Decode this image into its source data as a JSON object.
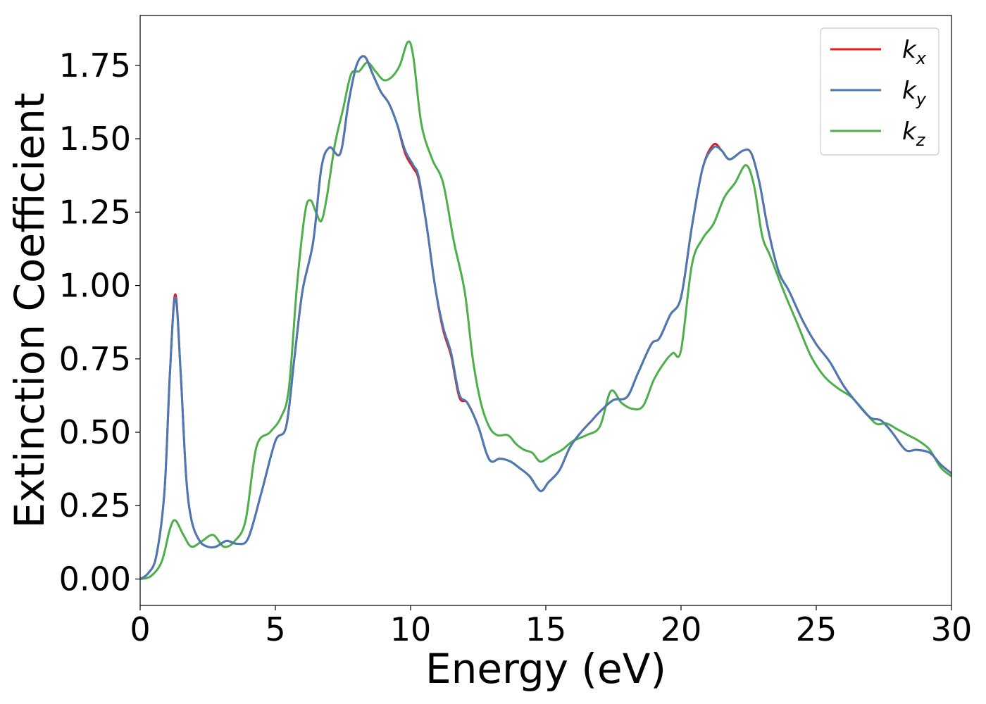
{
  "chart_data": {
    "type": "line",
    "title": "",
    "xlabel": "Energy (eV)",
    "ylabel": "Extinction Coefficient",
    "xlim": [
      0,
      30
    ],
    "ylim": [
      -0.09,
      1.92
    ],
    "x_ticks": [
      0,
      5,
      10,
      15,
      20,
      25,
      30
    ],
    "x_tick_labels": [
      "0",
      "5",
      "10",
      "15",
      "20",
      "25",
      "30"
    ],
    "y_ticks": [
      0,
      0.25,
      0.5,
      0.75,
      1.0,
      1.25,
      1.5,
      1.75
    ],
    "y_tick_labels": [
      "0.00",
      "0.25",
      "0.50",
      "0.75",
      "1.00",
      "1.25",
      "1.50",
      "1.75"
    ],
    "grid": false,
    "legend_position": "top-right",
    "series": [
      {
        "name": "k_x",
        "legend_base": "k",
        "legend_sub": "x",
        "color": "#e41a1c",
        "points": [
          [
            0,
            0.0
          ],
          [
            0.3,
            0.02
          ],
          [
            0.6,
            0.08
          ],
          [
            0.9,
            0.3
          ],
          [
            1.1,
            0.7
          ],
          [
            1.3,
            0.97
          ],
          [
            1.5,
            0.7
          ],
          [
            1.7,
            0.35
          ],
          [
            1.9,
            0.2
          ],
          [
            2.2,
            0.13
          ],
          [
            2.5,
            0.11
          ],
          [
            2.8,
            0.11
          ],
          [
            3.2,
            0.13
          ],
          [
            3.6,
            0.12
          ],
          [
            4.0,
            0.14
          ],
          [
            4.5,
            0.3
          ],
          [
            5.0,
            0.47
          ],
          [
            5.4,
            0.52
          ],
          [
            5.7,
            0.75
          ],
          [
            6.0,
            0.98
          ],
          [
            6.4,
            1.15
          ],
          [
            6.7,
            1.4
          ],
          [
            7.0,
            1.47
          ],
          [
            7.4,
            1.45
          ],
          [
            7.7,
            1.62
          ],
          [
            8.0,
            1.75
          ],
          [
            8.3,
            1.78
          ],
          [
            8.6,
            1.72
          ],
          [
            8.9,
            1.66
          ],
          [
            9.2,
            1.62
          ],
          [
            9.5,
            1.55
          ],
          [
            9.8,
            1.45
          ],
          [
            10.1,
            1.4
          ],
          [
            10.3,
            1.36
          ],
          [
            10.6,
            1.2
          ],
          [
            10.9,
            1.0
          ],
          [
            11.2,
            0.85
          ],
          [
            11.5,
            0.76
          ],
          [
            11.8,
            0.62
          ],
          [
            12.1,
            0.6
          ],
          [
            12.5,
            0.52
          ],
          [
            12.8,
            0.43
          ],
          [
            13.0,
            0.4
          ],
          [
            13.3,
            0.41
          ],
          [
            13.7,
            0.4
          ],
          [
            14.0,
            0.38
          ],
          [
            14.4,
            0.35
          ],
          [
            14.8,
            0.3
          ],
          [
            15.1,
            0.33
          ],
          [
            15.5,
            0.37
          ],
          [
            15.9,
            0.45
          ],
          [
            16.3,
            0.5
          ],
          [
            16.7,
            0.54
          ],
          [
            17.0,
            0.57
          ],
          [
            17.5,
            0.61
          ],
          [
            18.0,
            0.62
          ],
          [
            18.4,
            0.7
          ],
          [
            18.9,
            0.8
          ],
          [
            19.2,
            0.82
          ],
          [
            19.6,
            0.9
          ],
          [
            20.0,
            0.96
          ],
          [
            20.4,
            1.2
          ],
          [
            20.8,
            1.4
          ],
          [
            21.2,
            1.48
          ],
          [
            21.5,
            1.46
          ],
          [
            21.8,
            1.43
          ],
          [
            22.3,
            1.46
          ],
          [
            22.6,
            1.45
          ],
          [
            22.9,
            1.35
          ],
          [
            23.2,
            1.2
          ],
          [
            23.6,
            1.05
          ],
          [
            24.0,
            0.98
          ],
          [
            24.5,
            0.88
          ],
          [
            25.0,
            0.8
          ],
          [
            25.5,
            0.74
          ],
          [
            26.0,
            0.66
          ],
          [
            26.5,
            0.6
          ],
          [
            27.0,
            0.55
          ],
          [
            27.4,
            0.54
          ],
          [
            27.8,
            0.5
          ],
          [
            28.3,
            0.44
          ],
          [
            28.7,
            0.44
          ],
          [
            29.2,
            0.43
          ],
          [
            29.6,
            0.39
          ],
          [
            30.0,
            0.36
          ]
        ]
      },
      {
        "name": "k_y",
        "legend_base": "k",
        "legend_sub": "y",
        "color": "#4a7ab5",
        "points": [
          [
            0,
            0.0
          ],
          [
            0.3,
            0.02
          ],
          [
            0.6,
            0.08
          ],
          [
            0.9,
            0.3
          ],
          [
            1.1,
            0.7
          ],
          [
            1.3,
            0.96
          ],
          [
            1.5,
            0.7
          ],
          [
            1.7,
            0.35
          ],
          [
            1.9,
            0.2
          ],
          [
            2.2,
            0.13
          ],
          [
            2.5,
            0.11
          ],
          [
            2.8,
            0.11
          ],
          [
            3.2,
            0.13
          ],
          [
            3.6,
            0.12
          ],
          [
            4.0,
            0.14
          ],
          [
            4.5,
            0.3
          ],
          [
            5.0,
            0.47
          ],
          [
            5.4,
            0.52
          ],
          [
            5.7,
            0.75
          ],
          [
            6.0,
            0.98
          ],
          [
            6.4,
            1.15
          ],
          [
            6.7,
            1.4
          ],
          [
            7.0,
            1.47
          ],
          [
            7.4,
            1.45
          ],
          [
            7.7,
            1.62
          ],
          [
            8.0,
            1.75
          ],
          [
            8.3,
            1.78
          ],
          [
            8.6,
            1.72
          ],
          [
            8.9,
            1.66
          ],
          [
            9.2,
            1.62
          ],
          [
            9.5,
            1.55
          ],
          [
            9.8,
            1.46
          ],
          [
            10.1,
            1.41
          ],
          [
            10.3,
            1.37
          ],
          [
            10.6,
            1.2
          ],
          [
            10.9,
            1.0
          ],
          [
            11.2,
            0.86
          ],
          [
            11.5,
            0.77
          ],
          [
            11.8,
            0.63
          ],
          [
            12.1,
            0.6
          ],
          [
            12.5,
            0.52
          ],
          [
            12.8,
            0.43
          ],
          [
            13.0,
            0.4
          ],
          [
            13.3,
            0.41
          ],
          [
            13.7,
            0.4
          ],
          [
            14.0,
            0.38
          ],
          [
            14.4,
            0.35
          ],
          [
            14.8,
            0.3
          ],
          [
            15.1,
            0.33
          ],
          [
            15.5,
            0.37
          ],
          [
            15.9,
            0.45
          ],
          [
            16.3,
            0.5
          ],
          [
            16.7,
            0.54
          ],
          [
            17.0,
            0.57
          ],
          [
            17.5,
            0.61
          ],
          [
            18.0,
            0.62
          ],
          [
            18.4,
            0.7
          ],
          [
            18.9,
            0.8
          ],
          [
            19.2,
            0.82
          ],
          [
            19.6,
            0.9
          ],
          [
            20.0,
            0.96
          ],
          [
            20.4,
            1.2
          ],
          [
            20.8,
            1.4
          ],
          [
            21.2,
            1.47
          ],
          [
            21.5,
            1.46
          ],
          [
            21.8,
            1.43
          ],
          [
            22.3,
            1.46
          ],
          [
            22.6,
            1.45
          ],
          [
            22.9,
            1.35
          ],
          [
            23.2,
            1.2
          ],
          [
            23.6,
            1.05
          ],
          [
            24.0,
            0.98
          ],
          [
            24.5,
            0.88
          ],
          [
            25.0,
            0.8
          ],
          [
            25.5,
            0.74
          ],
          [
            26.0,
            0.66
          ],
          [
            26.5,
            0.6
          ],
          [
            27.0,
            0.55
          ],
          [
            27.4,
            0.54
          ],
          [
            27.8,
            0.5
          ],
          [
            28.3,
            0.44
          ],
          [
            28.7,
            0.44
          ],
          [
            29.2,
            0.43
          ],
          [
            29.6,
            0.39
          ],
          [
            30.0,
            0.36
          ]
        ]
      },
      {
        "name": "k_z",
        "legend_base": "k",
        "legend_sub": "z",
        "color": "#4daf4a",
        "points": [
          [
            0,
            0.0
          ],
          [
            0.4,
            0.01
          ],
          [
            0.8,
            0.06
          ],
          [
            1.1,
            0.17
          ],
          [
            1.3,
            0.2
          ],
          [
            1.6,
            0.15
          ],
          [
            1.9,
            0.11
          ],
          [
            2.3,
            0.13
          ],
          [
            2.7,
            0.15
          ],
          [
            3.1,
            0.11
          ],
          [
            3.5,
            0.13
          ],
          [
            3.9,
            0.2
          ],
          [
            4.3,
            0.45
          ],
          [
            4.8,
            0.5
          ],
          [
            5.2,
            0.55
          ],
          [
            5.5,
            0.65
          ],
          [
            5.8,
            1.0
          ],
          [
            6.1,
            1.25
          ],
          [
            6.3,
            1.29
          ],
          [
            6.5,
            1.25
          ],
          [
            6.7,
            1.22
          ],
          [
            6.9,
            1.3
          ],
          [
            7.2,
            1.48
          ],
          [
            7.5,
            1.6
          ],
          [
            7.8,
            1.72
          ],
          [
            8.1,
            1.73
          ],
          [
            8.4,
            1.76
          ],
          [
            8.7,
            1.73
          ],
          [
            9.0,
            1.7
          ],
          [
            9.3,
            1.71
          ],
          [
            9.6,
            1.75
          ],
          [
            9.9,
            1.83
          ],
          [
            10.1,
            1.78
          ],
          [
            10.4,
            1.55
          ],
          [
            10.8,
            1.43
          ],
          [
            11.2,
            1.35
          ],
          [
            11.6,
            1.15
          ],
          [
            12.0,
            0.98
          ],
          [
            12.3,
            0.75
          ],
          [
            12.6,
            0.6
          ],
          [
            12.9,
            0.52
          ],
          [
            13.2,
            0.49
          ],
          [
            13.6,
            0.49
          ],
          [
            13.9,
            0.46
          ],
          [
            14.2,
            0.44
          ],
          [
            14.5,
            0.43
          ],
          [
            14.8,
            0.4
          ],
          [
            15.2,
            0.42
          ],
          [
            15.6,
            0.44
          ],
          [
            16.0,
            0.47
          ],
          [
            16.5,
            0.49
          ],
          [
            17.0,
            0.52
          ],
          [
            17.4,
            0.64
          ],
          [
            17.8,
            0.6
          ],
          [
            18.2,
            0.58
          ],
          [
            18.6,
            0.59
          ],
          [
            19.0,
            0.68
          ],
          [
            19.4,
            0.74
          ],
          [
            19.7,
            0.77
          ],
          [
            20.0,
            0.78
          ],
          [
            20.4,
            1.07
          ],
          [
            20.8,
            1.16
          ],
          [
            21.2,
            1.21
          ],
          [
            21.6,
            1.3
          ],
          [
            22.0,
            1.35
          ],
          [
            22.4,
            1.41
          ],
          [
            22.7,
            1.34
          ],
          [
            23.0,
            1.17
          ],
          [
            23.3,
            1.1
          ],
          [
            23.8,
            0.98
          ],
          [
            24.3,
            0.87
          ],
          [
            24.8,
            0.76
          ],
          [
            25.3,
            0.69
          ],
          [
            25.8,
            0.65
          ],
          [
            26.3,
            0.62
          ],
          [
            26.7,
            0.58
          ],
          [
            27.2,
            0.53
          ],
          [
            27.6,
            0.53
          ],
          [
            28.0,
            0.51
          ],
          [
            28.4,
            0.49
          ],
          [
            28.8,
            0.47
          ],
          [
            29.2,
            0.44
          ],
          [
            29.6,
            0.38
          ],
          [
            30.0,
            0.35
          ]
        ]
      }
    ]
  }
}
